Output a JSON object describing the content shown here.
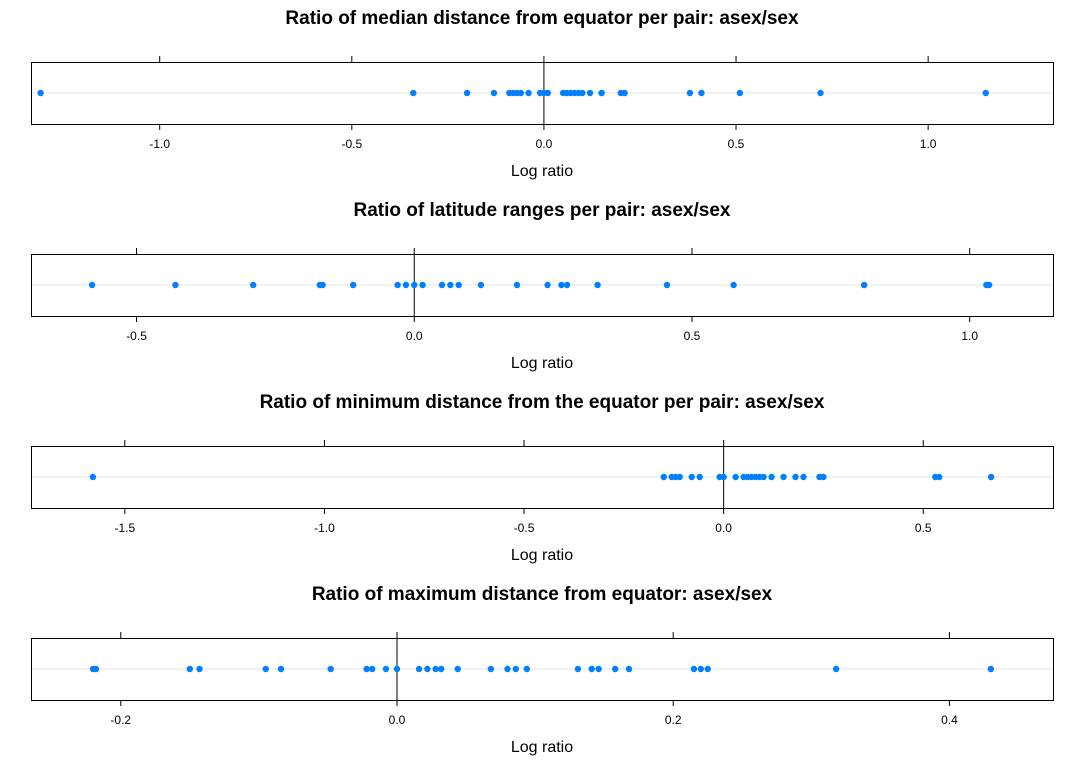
{
  "chart_data": [
    {
      "type": "scatter",
      "title": "Ratio of median distance from equator per pair: asex/sex",
      "xlabel": "Log ratio",
      "xlim": [
        -1.335,
        1.325
      ],
      "ticks": [
        -1.0,
        -0.5,
        0.0,
        0.5,
        1.0
      ],
      "tick_labels": [
        "-1.0",
        "-0.5",
        "0.0",
        "0.5",
        "1.0"
      ],
      "reference_line": 0,
      "point_color": "#0080ff",
      "grid_color": "#e6e6e6",
      "values": [
        -1.31,
        -0.34,
        -0.2,
        -0.13,
        -0.09,
        -0.08,
        -0.07,
        -0.06,
        -0.04,
        -0.01,
        0.0,
        0.01,
        0.05,
        0.06,
        0.07,
        0.08,
        0.09,
        0.1,
        0.12,
        0.15,
        0.15,
        0.2,
        0.21,
        0.38,
        0.41,
        0.51,
        0.72,
        1.15
      ]
    },
    {
      "type": "scatter",
      "title": "Ratio of latitude ranges per pair: asex/sex",
      "xlabel": "Log ratio",
      "xlim": [
        -0.69,
        1.15
      ],
      "ticks": [
        -0.5,
        0.0,
        0.5,
        1.0
      ],
      "tick_labels": [
        "-0.5",
        "0.0",
        "0.5",
        "1.0"
      ],
      "reference_line": 0,
      "point_color": "#0080ff",
      "grid_color": "#e6e6e6",
      "values": [
        -0.58,
        -0.43,
        -0.29,
        -0.17,
        -0.165,
        -0.11,
        -0.03,
        -0.015,
        0.0,
        0.015,
        0.05,
        0.065,
        0.08,
        0.12,
        0.185,
        0.24,
        0.265,
        0.275,
        0.33,
        0.455,
        0.575,
        0.81,
        1.03,
        1.035
      ]
    },
    {
      "type": "scatter",
      "title": "Ratio of minimum distance from the equator per pair: asex/sex",
      "xlabel": "Log ratio",
      "xlim": [
        -1.735,
        0.825
      ],
      "ticks": [
        -1.5,
        -1.0,
        -0.5,
        0.0,
        0.5
      ],
      "tick_labels": [
        "-1.5",
        "-1.0",
        "-0.5",
        "0.0",
        "0.5"
      ],
      "reference_line": 0,
      "point_color": "#0080ff",
      "grid_color": "#e6e6e6",
      "values": [
        -1.58,
        -0.15,
        -0.13,
        -0.12,
        -0.11,
        -0.08,
        -0.06,
        -0.01,
        0.0,
        0.03,
        0.05,
        0.06,
        0.07,
        0.08,
        0.09,
        0.1,
        0.12,
        0.15,
        0.18,
        0.2,
        0.24,
        0.25,
        0.53,
        0.54,
        0.67
      ]
    },
    {
      "type": "scatter",
      "title": "Ratio of maximum distance from equator: asex/sex",
      "xlabel": "Log ratio",
      "xlim": [
        -0.265,
        0.475
      ],
      "ticks": [
        -0.2,
        0.0,
        0.2,
        0.4
      ],
      "tick_labels": [
        "-0.2",
        "0.0",
        "0.2",
        "0.4"
      ],
      "reference_line": 0,
      "point_color": "#0080ff",
      "grid_color": "#e6e6e6",
      "values": [
        -0.22,
        -0.218,
        -0.15,
        -0.143,
        -0.095,
        -0.084,
        -0.048,
        -0.022,
        -0.018,
        -0.008,
        0.0,
        0.016,
        0.022,
        0.028,
        0.032,
        0.044,
        0.068,
        0.08,
        0.086,
        0.094,
        0.131,
        0.141,
        0.146,
        0.158,
        0.168,
        0.215,
        0.22,
        0.225,
        0.318,
        0.43
      ]
    }
  ]
}
